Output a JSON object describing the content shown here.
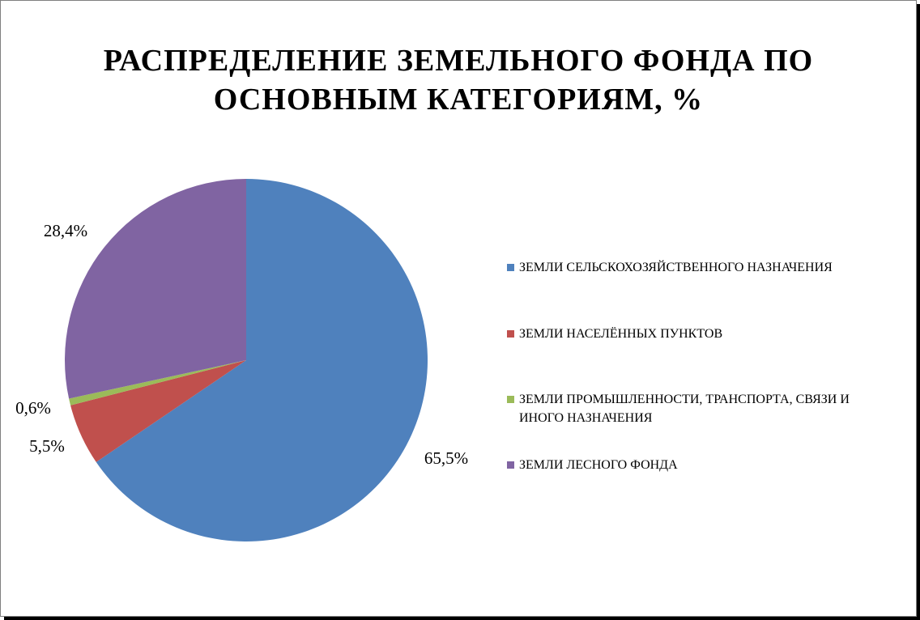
{
  "chart_data": {
    "type": "pie",
    "title_line1": "РАСПРЕДЕЛЕНИЕ ЗЕМЕЛЬНОГО ФОНДА ПО",
    "title_line2": "ОСНОВНЫМ КАТЕГОРИЯМ, %",
    "legend_position": "right",
    "slices": [
      {
        "name": "ЗЕМЛИ СЕЛЬСКОХОЗЯЙСТВЕННОГО НАЗНАЧЕНИЯ",
        "value": 65.5,
        "label": "65,5%",
        "color": "#4F81BD"
      },
      {
        "name": "ЗЕМЛИ НАСЕЛЁННЫХ ПУНКТОВ",
        "value": 5.5,
        "label": "5,5%",
        "color": "#C0504D"
      },
      {
        "name": "ЗЕМЛИ ПРОМЫШЛЕННОСТИ, ТРАНСПОРТА, СВЯЗИ И ИНОГО НАЗНАЧЕНИЯ",
        "value": 0.6,
        "label": "0,6%",
        "color": "#9BBB59"
      },
      {
        "name": "ЗЕМЛИ ЛЕСНОГО ФОНДА",
        "value": 28.4,
        "label": "28,4%",
        "color": "#8064A2"
      }
    ]
  }
}
